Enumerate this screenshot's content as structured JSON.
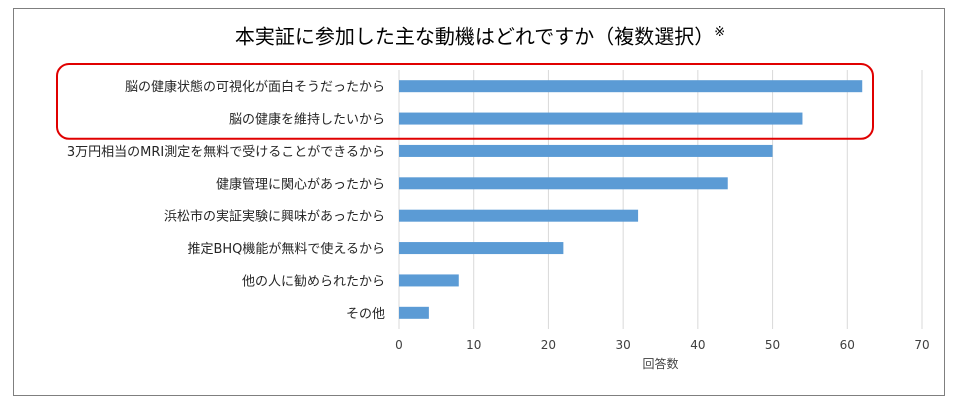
{
  "chart_data": {
    "type": "bar",
    "orientation": "horizontal",
    "title": "本実証に参加した主な動機はどれですか（複数選択）",
    "title_note": "※",
    "categories": [
      "脳の健康状態の可視化が面白そうだったから",
      "脳の健康を維持したいから",
      "3万円相当のMRI測定を無料で受けることができるから",
      "健康管理に関心があったから",
      "浜松市の実証実験に興味があったから",
      "推定BHQ機能が無料で使えるから",
      "他の人に勧められたから",
      "その他"
    ],
    "values": [
      62,
      54,
      50,
      44,
      32,
      22,
      8,
      4
    ],
    "xlabel": "回答数",
    "ylabel": "",
    "xlim": [
      0,
      70
    ],
    "xticks": [
      0,
      10,
      20,
      30,
      40,
      50,
      60,
      70
    ],
    "grid": true,
    "highlight": {
      "categories": [
        "脳の健康状態の可視化が面白そうだったから",
        "脳の健康を維持したいから"
      ],
      "color": "#e00000"
    },
    "bar_color": "#5b9bd5",
    "grid_color": "#d9d9d9"
  }
}
